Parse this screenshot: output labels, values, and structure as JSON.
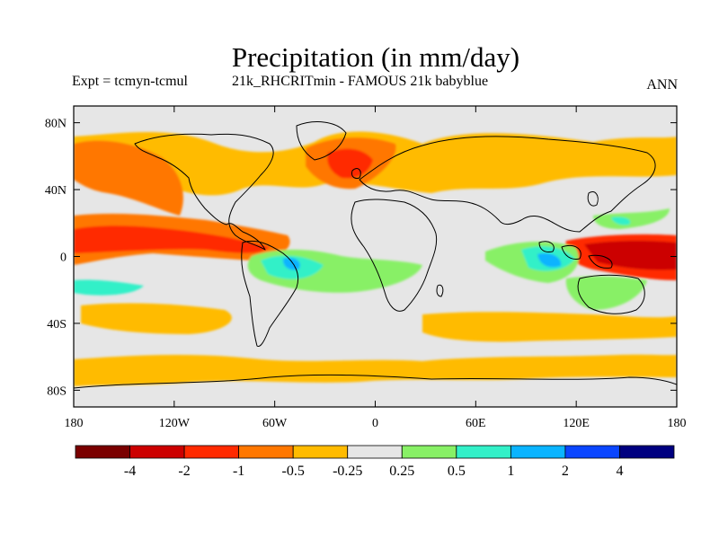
{
  "title": "Precipitation (in mm/day)",
  "subtitle_left": "Expt = tcmyn-tcmul",
  "subtitle_center": "21k_RHCRITmin - FAMOUS 21k babyblue",
  "subtitle_right": "ANN",
  "map": {
    "lon_labels": [
      "180",
      "120W",
      "60W",
      "0",
      "60E",
      "120E",
      "180"
    ],
    "lat_labels": [
      "80N",
      "40N",
      "0",
      "40S",
      "80S"
    ],
    "background_color": "#e6e6e6",
    "coastline_color": "#000000"
  },
  "colorbar": {
    "colors": [
      "#7a0000",
      "#cc0000",
      "#ff2a00",
      "#ff7700",
      "#ffbb00",
      "#e6e6e6",
      "#88f066",
      "#33f0c8",
      "#0ab4ff",
      "#0a46ff",
      "#000080"
    ],
    "labels": [
      "-4",
      "-2",
      "-1",
      "-0.5",
      "-0.25",
      "0.25",
      "0.5",
      "1",
      "2",
      "4"
    ]
  }
}
